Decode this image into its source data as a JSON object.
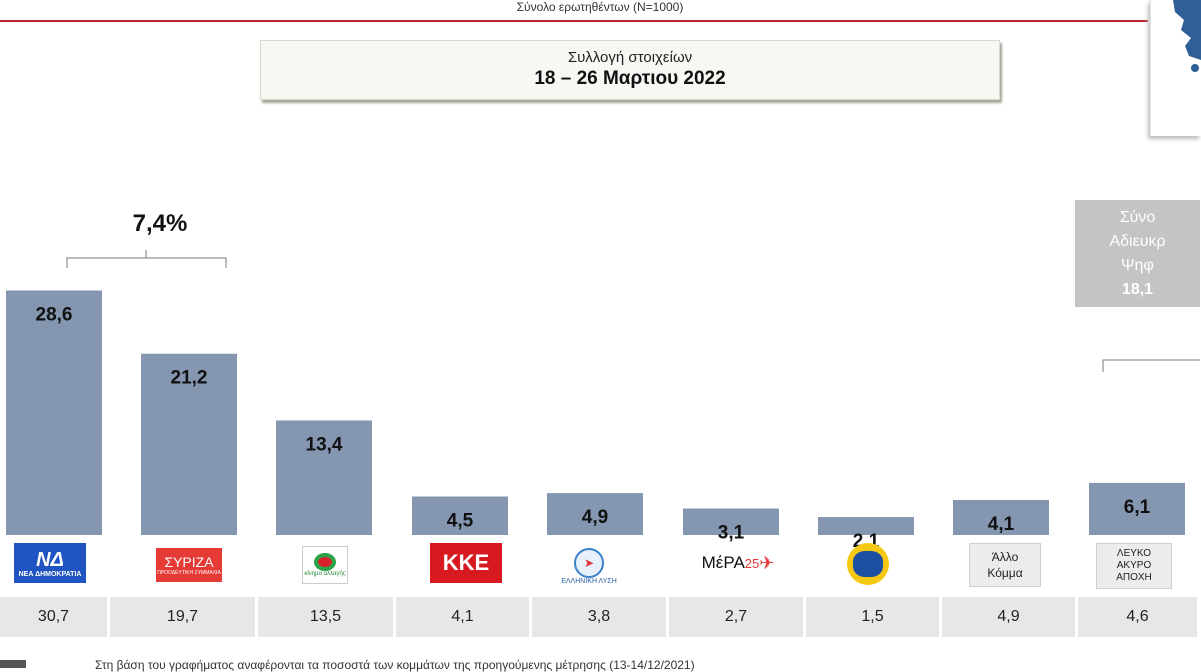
{
  "header": {
    "sample_label": "Σύνολο ερωτηθέντων (N=1000)"
  },
  "period": {
    "label": "Συλλογή στοιχείων",
    "dates": "18 – 26 Μαρτιου 2022"
  },
  "bracket": {
    "value_label": "7,4%"
  },
  "total_box": {
    "lines": [
      "Σύνο",
      "Αδιευκρ",
      "Ψηφ",
      "18,1"
    ]
  },
  "logos": {
    "nd": {
      "big": "ΝΔ",
      "small": "ΝΕΑ ΔΗΜΟΚΡΑΤΙΑ"
    },
    "syriza": {
      "name": "ΣΥΡΙΖΑ",
      "sub": "ΠΡΟΟΔΕΥΤΙΚΗ ΣΥΜΜΑΧΙΑ"
    },
    "pasok": {
      "text": "κίνημα αλλαγής"
    },
    "kke": {
      "text": "ΚΚΕ"
    },
    "el": {
      "text": "ΕΛΛΗΝΙΚΗ ΛΥΣΗ"
    },
    "mera": {
      "text": "ΜέΡΑ",
      "num": "25"
    },
    "other": {
      "line1": "Άλλο",
      "line2": "Κόμμα"
    },
    "blank": {
      "line1": "ΛΕΥΚΟ",
      "line2": "ΑΚΥΡΟ",
      "line3": "ΑΠΟΧΗ"
    }
  },
  "footnote": "Στη βάση του γραφήματος αναφέρονται τα ποσοστά των κομμάτων της προηγούμενης μέτρησης (13-14/12/2021)",
  "colors": {
    "bar": "#8496b0",
    "rule": "#b5252b",
    "prev_cell": "#e7e7e7"
  },
  "chart_data": {
    "type": "bar",
    "categories": [
      "ΝΔ",
      "ΣΥΡΙΖΑ",
      "ΚΙΝΑΛ",
      "ΚΚΕ",
      "Ελληνική Λύση",
      "ΜέΡΑ25",
      "Έλληνες",
      "Άλλο Κόμμα",
      "Λευκό/Άκυρο/Αποχή"
    ],
    "series": [
      {
        "values": [
          28.6,
          21.2,
          13.4,
          4.5,
          4.9,
          3.1,
          2.1,
          4.1,
          6.1
        ]
      }
    ],
    "value_labels": [
      "28,6",
      "21,2",
      "13,4",
      "4,5",
      "4,9",
      "3,1",
      "2,1",
      "4,1",
      "6,1"
    ],
    "previous_labels": [
      "30,7",
      "19,7",
      "13,5",
      "4,1",
      "3,8",
      "2,7",
      "1,5",
      "4,9",
      "4,6"
    ],
    "ylim": [
      0,
      30
    ],
    "grid": false,
    "legend": "none"
  }
}
